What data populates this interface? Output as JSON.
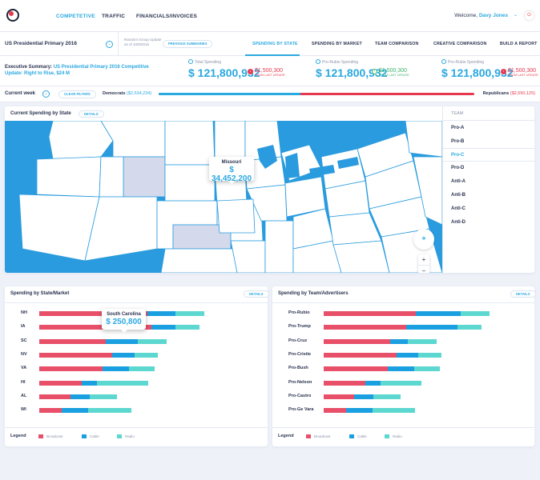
{
  "nav": {
    "items": [
      "COMPETETIVE",
      "TRAFFIC",
      "FINANCIALS/INVOICES"
    ],
    "welcome_prefix": "Welcome,",
    "user_name": "Davy Jones"
  },
  "subbar": {
    "dropdown_title": "US Presidential Primary 2016",
    "updated_line1": "Random Group Update",
    "updated_line2": "as of 10/8/2015",
    "previous_button": "PREVIOUS SUMMARIES",
    "tabs": [
      "SPENDING BY STATE",
      "SPENDING BY MARKET",
      "TEAM COMPARISON",
      "CREATIVE COMPARISON",
      "BUILD A REPORT"
    ],
    "active_tab": "SPENDING BY STATE"
  },
  "summary": {
    "label_prefix": "Executive Summary:",
    "label_highlight": "US Presidential Primary 2016 Competitive Update: Right to Rise, $24 M",
    "metrics": [
      {
        "label": "Total Spending",
        "value": "$ 121,800,932",
        "delta": "$1,500,300",
        "delta_note": "FROM LAST UPDATE",
        "direction": "down"
      },
      {
        "label": "Pro-Rubio Spending",
        "value": "$ 121,800,932",
        "delta": "$1,500,300",
        "delta_note": "FROM LAST UPDATE",
        "direction": "up"
      },
      {
        "label": "Pro-Rubio Spending",
        "value": "$ 121,800,932",
        "delta": "$1,500,300",
        "delta_note": "FROM LAST UPDATE",
        "direction": "down"
      }
    ]
  },
  "week": {
    "label": "Current week",
    "clear_button": "CLEAR FILTERS",
    "democrats_label": "Democrats",
    "democrats_value": "($2,534,234)",
    "republicans_label": "Republicans",
    "republicans_value": "($2,550,125)",
    "democrat_share": 0.45
  },
  "map_card": {
    "title": "Current Spending by State",
    "details_button": "DETAILS",
    "tooltip_state": "Missouri",
    "tooltip_value": "$ 34,452,200",
    "team_header": "TEAM",
    "teams": [
      "Pro-A",
      "Pro-B",
      "Pro-C",
      "Pro-D",
      "Anti-A",
      "Anti-B",
      "Anti-C",
      "Anti-D"
    ],
    "active_team": "Pro-C",
    "zoom_in": "+",
    "zoom_out": "−"
  },
  "state_card": {
    "title": "Spending by State/Market",
    "details_button": "DETAILS",
    "tooltip_state": "South Carolina",
    "tooltip_value": "$ 250,800",
    "legend_title": "Legend",
    "legend_items": [
      "Broadcast",
      "Cable",
      "Radio"
    ]
  },
  "team_card": {
    "title": "Spending by Team/Advertisers",
    "details_button": "DETAILS",
    "legend_title": "Legend",
    "legend_items": [
      "Broadcast",
      "Cable",
      "Radio"
    ]
  },
  "colors": {
    "broadcast": "#e8506a",
    "cable": "#1aa0e0",
    "radio": "#5dd8d0",
    "accent": "#2aa8e0",
    "negative": "#e63950",
    "positive": "#3db46d"
  },
  "chart_data": [
    {
      "type": "bar",
      "stacked": true,
      "orientation": "horizontal",
      "title": "Spending by State/Market",
      "categories": [
        "NH",
        "IA",
        "SC",
        "NV",
        "VA",
        "HI",
        "AL",
        "WI"
      ],
      "series": [
        {
          "name": "Broadcast",
          "values": [
            135,
            140,
            83,
            91,
            79,
            53,
            39,
            28
          ]
        },
        {
          "name": "Cable",
          "values": [
            35,
            30,
            40,
            28,
            33,
            19,
            24,
            33
          ]
        },
        {
          "name": "Radio",
          "values": [
            36,
            30,
            36,
            29,
            32,
            64,
            34,
            54
          ]
        }
      ]
    },
    {
      "type": "bar",
      "stacked": true,
      "orientation": "horizontal",
      "title": "Spending by Team/Advertisers",
      "categories": [
        "Pro-Rubio",
        "Pro-Trump",
        "Pro-Cruz",
        "Pro-Cristie",
        "Pro-Bush",
        "Pro-Nelson",
        "Pro-Castro",
        "Pro-Ge Vara"
      ],
      "series": [
        {
          "name": "Broadcast",
          "values": [
            115,
            103,
            83,
            91,
            80,
            52,
            38,
            28
          ]
        },
        {
          "name": "Cable",
          "values": [
            56,
            64,
            22,
            27,
            33,
            19,
            24,
            33
          ]
        },
        {
          "name": "Radio",
          "values": [
            36,
            30,
            36,
            29,
            32,
            51,
            34,
            53
          ]
        }
      ]
    }
  ]
}
